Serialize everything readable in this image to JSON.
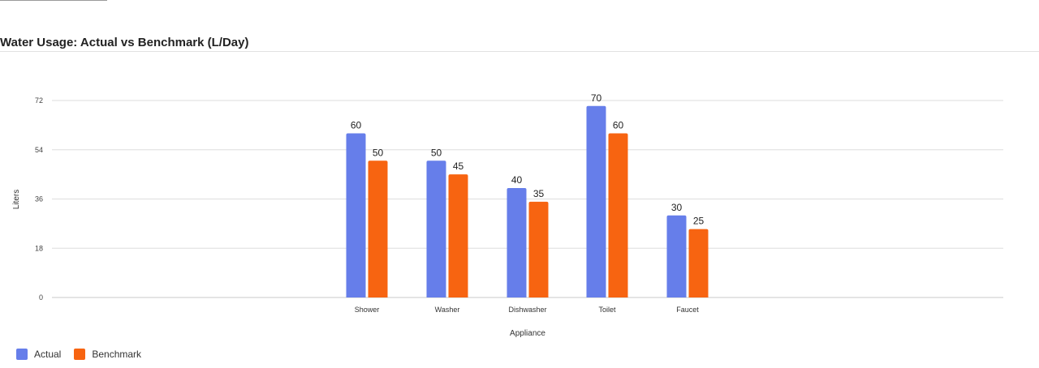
{
  "chart_data": {
    "type": "bar",
    "title": "Water Usage: Actual vs Benchmark (L/Day)",
    "xlabel": "Appliance",
    "ylabel": "Liters",
    "categories": [
      "Shower",
      "Washer",
      "Dishwasher",
      "Toilet",
      "Faucet"
    ],
    "series": [
      {
        "name": "Actual",
        "values": [
          60,
          50,
          40,
          70,
          30
        ],
        "color": "#667eea"
      },
      {
        "name": "Benchmark",
        "values": [
          50,
          45,
          35,
          60,
          25
        ],
        "color": "#f76411"
      }
    ],
    "yticks": [
      "0",
      "18",
      "36",
      "54",
      "72"
    ],
    "ylim": [
      0,
      72
    ],
    "grid": true,
    "legend_position": "bottom-left"
  }
}
